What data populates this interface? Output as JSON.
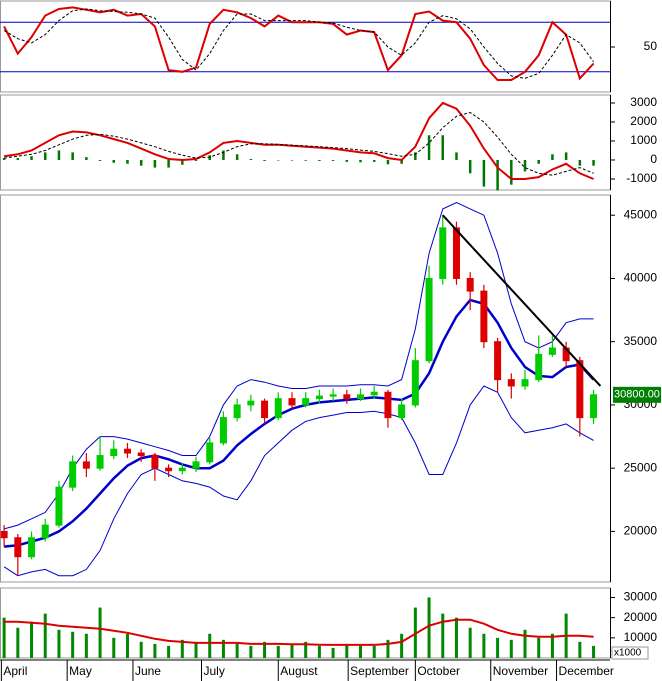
{
  "chart_data": [
    {
      "type": "line",
      "ylim": [
        -4.5,
        105.7
      ],
      "yticks": [
        50
      ],
      "levels": [
        20,
        80
      ],
      "level_color": "#0000cc",
      "series": [
        {
          "color": "#dd0000",
          "width": 2,
          "dash": false,
          "mark": "line",
          "values": [
            75,
            42,
            62,
            88,
            96,
            98,
            95,
            92,
            95,
            88,
            90,
            75,
            22,
            20,
            25,
            78,
            95,
            92,
            85,
            75,
            88,
            80,
            80,
            80,
            78,
            65,
            70,
            68,
            22,
            40,
            90,
            93,
            82,
            80,
            60,
            28,
            10,
            10,
            20,
            40,
            80,
            65,
            12,
            30
          ]
        },
        {
          "color": "#000000",
          "width": 1,
          "dash": true,
          "mark": "line",
          "values": [
            70,
            60,
            55,
            65,
            82,
            94,
            96,
            94,
            93,
            92,
            90,
            85,
            62,
            35,
            22,
            42,
            70,
            90,
            90,
            82,
            82,
            82,
            82,
            80,
            79,
            74,
            70,
            68,
            50,
            40,
            55,
            80,
            88,
            84,
            72,
            50,
            30,
            15,
            12,
            18,
            40,
            65,
            55,
            32
          ]
        }
      ]
    },
    {
      "type": "line",
      "ylim": [
        -1580,
        3420
      ],
      "yticks": [
        3000,
        2000,
        1000,
        0,
        -1000
      ],
      "series": [
        {
          "color": "#007700",
          "mark": "bar",
          "values": [
            100,
            100,
            200,
            400,
            500,
            400,
            150,
            -50,
            -150,
            -200,
            -300,
            -400,
            -400,
            -250,
            -50,
            250,
            500,
            300,
            50,
            -50,
            -20,
            -30,
            -40,
            -50,
            -50,
            -100,
            -120,
            -100,
            -230,
            -200,
            400,
            1300,
            1300,
            400,
            -700,
            -1400,
            -1600,
            -1300,
            -600,
            -200,
            300,
            400,
            -300,
            -300
          ]
        },
        {
          "color": "#dd0000",
          "width": 2,
          "dash": false,
          "mark": "line",
          "values": [
            200,
            300,
            500,
            900,
            1300,
            1500,
            1450,
            1300,
            1100,
            900,
            600,
            300,
            50,
            0,
            50,
            400,
            900,
            1000,
            900,
            800,
            800,
            750,
            700,
            650,
            600,
            500,
            400,
            350,
            100,
            0,
            700,
            2200,
            3000,
            2700,
            1800,
            600,
            -400,
            -1000,
            -1000,
            -900,
            -500,
            -200,
            -700,
            -1000
          ]
        },
        {
          "color": "#000000",
          "width": 1,
          "dash": true,
          "mark": "line",
          "values": [
            100,
            200,
            300,
            500,
            800,
            1100,
            1300,
            1350,
            1250,
            1100,
            900,
            700,
            450,
            250,
            100,
            150,
            400,
            700,
            850,
            850,
            820,
            780,
            740,
            700,
            650,
            600,
            520,
            450,
            330,
            200,
            300,
            900,
            1700,
            2300,
            2500,
            2000,
            1200,
            300,
            -400,
            -700,
            -800,
            -600,
            -400,
            -700
          ]
        }
      ]
    },
    {
      "type": "candlestick",
      "ylim": [
        16000,
        46600
      ],
      "yticks": [
        20000,
        25000,
        30000,
        35000,
        40000,
        45000
      ],
      "up_color": "#00cc00",
      "down_color": "#dd0000",
      "open": [
        20000,
        19500,
        18000,
        19500,
        20500,
        23500,
        25500,
        25000,
        26000,
        26500,
        26200,
        26000,
        25000,
        24800,
        25000,
        25500,
        27000,
        29000,
        30000,
        30300,
        29000,
        30500,
        30000,
        30500,
        30700,
        30800,
        30500,
        30800,
        31000,
        29000,
        30000,
        33500,
        40000,
        44000,
        40000,
        39000,
        35000,
        32000,
        31500,
        32000,
        34000,
        34500,
        33500,
        29000
      ],
      "close": [
        19500,
        18000,
        19500,
        20500,
        23500,
        25500,
        25000,
        26000,
        26500,
        26200,
        26000,
        25000,
        24800,
        25000,
        25500,
        27000,
        29000,
        30000,
        30300,
        29000,
        30500,
        30000,
        30500,
        30700,
        30800,
        30500,
        30800,
        31000,
        29000,
        30000,
        33500,
        40000,
        44000,
        40000,
        39000,
        35000,
        32000,
        31500,
        32000,
        34000,
        34500,
        33500,
        29000,
        30800
      ],
      "high": [
        20500,
        19800,
        20000,
        21000,
        24000,
        26000,
        26200,
        27500,
        27200,
        27000,
        26500,
        26200,
        25300,
        25400,
        25900,
        27400,
        29500,
        30500,
        30800,
        30500,
        31000,
        31000,
        31000,
        31200,
        31300,
        31200,
        31300,
        31500,
        31200,
        30500,
        34500,
        41000,
        45000,
        44500,
        40500,
        39500,
        35300,
        32500,
        32800,
        35500,
        35500,
        35000,
        33800,
        31200
      ],
      "low": [
        18800,
        16500,
        17800,
        19200,
        20300,
        23200,
        24300,
        24800,
        25700,
        25800,
        25500,
        24000,
        24300,
        24500,
        24700,
        25300,
        26800,
        28700,
        29500,
        28500,
        28800,
        29700,
        29800,
        30100,
        30300,
        30100,
        30300,
        30500,
        28200,
        28800,
        29800,
        33300,
        39500,
        39500,
        37500,
        34500,
        31000,
        30500,
        31200,
        31800,
        33800,
        33000,
        27500,
        28500
      ],
      "series": [
        {
          "color": "#0000cc",
          "width": 1,
          "dash": false,
          "mark": "line",
          "values": [
            20200,
            20500,
            21000,
            21500,
            23000,
            25000,
            26500,
            27500,
            27500,
            27300,
            27000,
            26700,
            26400,
            26000,
            26000,
            27500,
            30000,
            31500,
            32000,
            31800,
            31500,
            31300,
            31300,
            31500,
            31500,
            31500,
            31600,
            31600,
            31500,
            32000,
            36000,
            42000,
            45500,
            46000,
            45500,
            45000,
            42000,
            38000,
            35000,
            34500,
            35000,
            36500,
            36800,
            36800
          ]
        },
        {
          "color": "#0000cc",
          "width": 2.5,
          "dash": false,
          "mark": "line",
          "values": [
            18800,
            18900,
            19200,
            19500,
            20000,
            20800,
            21800,
            23000,
            24200,
            25200,
            25800,
            26000,
            25700,
            25300,
            25000,
            25000,
            25600,
            26800,
            27700,
            28500,
            29200,
            29700,
            30000,
            30200,
            30300,
            30400,
            30500,
            30600,
            30500,
            30400,
            30900,
            32500,
            35000,
            37000,
            38300,
            38000,
            36500,
            34500,
            33000,
            32300,
            32200,
            33000,
            33200,
            32000
          ]
        },
        {
          "color": "#0000cc",
          "width": 1,
          "dash": false,
          "mark": "line",
          "values": [
            17200,
            16500,
            16800,
            17000,
            16500,
            16500,
            17000,
            18500,
            21000,
            23000,
            24500,
            25000,
            24500,
            24000,
            23800,
            23500,
            22800,
            22500,
            24000,
            26000,
            27000,
            28000,
            28700,
            29000,
            29200,
            29400,
            29400,
            29500,
            29300,
            29000,
            27000,
            24500,
            24500,
            27000,
            30000,
            31500,
            31000,
            29000,
            27800,
            28000,
            28200,
            28500,
            27800,
            27200
          ]
        }
      ],
      "trendline": {
        "x": [
          32,
          43.5
        ],
        "y": [
          45000,
          31500
        ],
        "color": "#000000"
      },
      "current_price": 30800,
      "current_price_label": "30800.00",
      "current_price_color": "#008000"
    },
    {
      "type": "bar",
      "ylim": [
        0,
        34700
      ],
      "yticks": [
        10000,
        20000,
        30000
      ],
      "unit_label": "x1000",
      "series": [
        {
          "color": "#008800",
          "mark": "bar",
          "values": [
            20000,
            15000,
            18000,
            22000,
            14000,
            13000,
            12000,
            25000,
            10000,
            12000,
            8000,
            7000,
            6000,
            9000,
            8000,
            12000,
            9000,
            7000,
            6000,
            8000,
            6000,
            7000,
            8000,
            6000,
            5000,
            7000,
            6000,
            6000,
            9000,
            12000,
            25000,
            30000,
            22000,
            20000,
            15000,
            12000,
            10000,
            9000,
            14000,
            10000,
            12000,
            22000,
            8000,
            6000
          ]
        },
        {
          "color": "#dd0000",
          "width": 2,
          "dash": false,
          "mark": "line",
          "values": [
            18000,
            18000,
            17500,
            17000,
            16000,
            15500,
            15000,
            14500,
            13500,
            12500,
            11000,
            9500,
            8500,
            8000,
            7500,
            7500,
            7500,
            7500,
            7000,
            7000,
            7000,
            6800,
            6800,
            6600,
            6500,
            6500,
            6500,
            6500,
            7000,
            8000,
            12000,
            16000,
            18000,
            19000,
            19000,
            17000,
            14000,
            12000,
            11000,
            10500,
            10500,
            11000,
            11000,
            10500
          ]
        }
      ],
      "xlim": [
        -0.3,
        44.2
      ],
      "xticks": [
        {
          "value": -0.2,
          "label": "April"
        },
        {
          "value": 4.6,
          "label": "May"
        },
        {
          "value": 9.4,
          "label": "June"
        },
        {
          "value": 14.4,
          "label": "July"
        },
        {
          "value": 20,
          "label": "August"
        },
        {
          "value": 25.1,
          "label": "September"
        },
        {
          "value": 30,
          "label": "October"
        },
        {
          "value": 35.5,
          "label": "November"
        },
        {
          "value": 40.3,
          "label": "December"
        }
      ]
    }
  ]
}
